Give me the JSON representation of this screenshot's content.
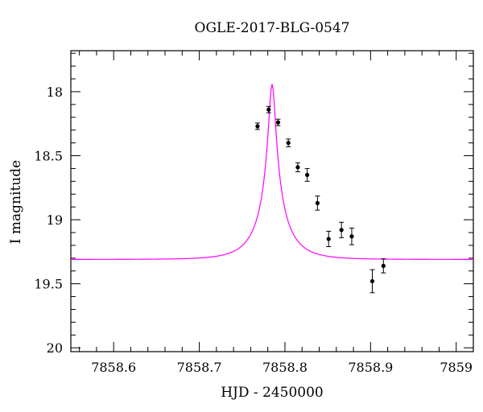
{
  "chart_data": {
    "type": "scatter",
    "title": "OGLE-2017-BLG-0547",
    "xlabel": "HJD - 2450000",
    "ylabel": "I magnitude",
    "xlim": [
      7858.55,
      7859.02
    ],
    "ylim": [
      20.03,
      17.68
    ],
    "y_inverted": true,
    "x_major_ticks": [
      7858.6,
      7858.7,
      7858.8,
      7858.9,
      7859
    ],
    "x_tick_labels": [
      "7858.6",
      "7858.7",
      "7858.8",
      "7858.9",
      "7859"
    ],
    "x_minor_step": 0.02,
    "y_major_ticks": [
      18,
      18.5,
      19,
      19.5,
      20
    ],
    "y_tick_labels": [
      "18",
      "18.5",
      "19",
      "19.5",
      "20"
    ],
    "y_minor_step": 0.1,
    "grid": false,
    "model": {
      "color": "#ff00ff",
      "t0": 7858.785,
      "tE": 0.0355,
      "u0": 0.1065,
      "baseline_mag": 19.31,
      "fs_fraction": 0.3
    },
    "points": [
      {
        "x": 7858.768,
        "y": 18.27,
        "err": 0.025
      },
      {
        "x": 7858.781,
        "y": 18.14,
        "err": 0.025
      },
      {
        "x": 7858.792,
        "y": 18.24,
        "err": 0.025
      },
      {
        "x": 7858.804,
        "y": 18.4,
        "err": 0.03
      },
      {
        "x": 7858.815,
        "y": 18.59,
        "err": 0.035
      },
      {
        "x": 7858.826,
        "y": 18.65,
        "err": 0.05
      },
      {
        "x": 7858.838,
        "y": 18.87,
        "err": 0.055
      },
      {
        "x": 7858.851,
        "y": 19.15,
        "err": 0.06
      },
      {
        "x": 7858.866,
        "y": 19.08,
        "err": 0.06
      },
      {
        "x": 7858.878,
        "y": 19.13,
        "err": 0.065
      },
      {
        "x": 7858.902,
        "y": 19.48,
        "err": 0.09
      },
      {
        "x": 7858.915,
        "y": 19.36,
        "err": 0.055
      }
    ]
  }
}
